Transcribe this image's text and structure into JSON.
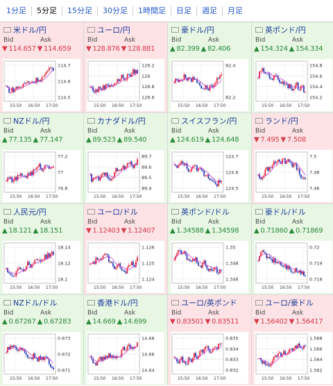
{
  "tabs": [
    "1分足",
    "5分足",
    "15分足",
    "30分足",
    "1時間足",
    "日足",
    "週足",
    "月足"
  ],
  "active_tab": 1,
  "bid_label": "Bid",
  "ask_label": "Ask",
  "time_labels": [
    "15:50",
    "16:50",
    "17:50"
  ],
  "colors": {
    "up_bg": "#e8f7e4",
    "down_bg": "#fde3e5",
    "up_text": "#2a8a3a",
    "down_text": "#d83a4a",
    "name_text": "#1a3a99"
  },
  "pairs": [
    {
      "name": "米ドル/円",
      "flag": "us-flag-icon",
      "dir": "down",
      "bid": "114.657",
      "ask": "114.659",
      "ticks": [
        "114.7",
        "114.6",
        "114.5"
      ],
      "trend": "up"
    },
    {
      "name": "ユーロ/円",
      "flag": "eu-flag-icon",
      "dir": "down",
      "bid": "128.876",
      "ask": "128.881",
      "ticks": [
        "129.2",
        "129",
        "128.8",
        "128.6"
      ],
      "trend": "up"
    },
    {
      "name": "豪ドル/円",
      "flag": "au-flag-icon",
      "dir": "up",
      "bid": "82.399",
      "ask": "82.406",
      "ticks": [
        "82.4",
        "82.2"
      ],
      "trend": "flat"
    },
    {
      "name": "英ポンド/円",
      "flag": "uk-flag-icon",
      "dir": "up",
      "bid": "154.324",
      "ask": "154.334",
      "ticks": [
        "154.8",
        "154.6",
        "154.4",
        "154.2"
      ],
      "trend": "down"
    },
    {
      "name": "NZドル/円",
      "flag": "nz-flag-icon",
      "dir": "up",
      "bid": "77.135",
      "ask": "77.147",
      "ticks": [
        "77.2",
        "77",
        "76.8"
      ],
      "trend": "up"
    },
    {
      "name": "カナダドル/円",
      "flag": "ca-flag-icon",
      "dir": "up",
      "bid": "89.523",
      "ask": "89.540",
      "ticks": [
        "89.7",
        "89.6",
        "89.5",
        "89.4"
      ],
      "trend": "up"
    },
    {
      "name": "スイスフラン/円",
      "flag": "ch-flag-icon",
      "dir": "up",
      "bid": "124.619",
      "ask": "124.648",
      "ticks": [
        "124.7",
        "124.6",
        "124.5"
      ],
      "trend": "down"
    },
    {
      "name": "ランド/円",
      "flag": "za-flag-icon",
      "dir": "down",
      "bid": "7.495",
      "ask": "7.508",
      "ticks": [
        "7.5",
        "7.48",
        "7.46"
      ],
      "trend": "peak"
    },
    {
      "name": "人民元/円",
      "flag": "cn-flag-icon",
      "dir": "up",
      "bid": "18.121",
      "ask": "18.151",
      "ticks": [
        "18.14",
        "18.12",
        "18.1"
      ],
      "trend": "up"
    },
    {
      "name": "ユーロ/ドル",
      "flag": "eu-flag-icon",
      "dir": "down",
      "bid": "1.12403",
      "ask": "1.12407",
      "ticks": [
        "1.126",
        "1.125",
        "1.124"
      ],
      "trend": "flat"
    },
    {
      "name": "英ポンド/ドル",
      "flag": "uk-flag-icon",
      "dir": "up",
      "bid": "1.34588",
      "ask": "1.34598",
      "ticks": [
        "1.35",
        "1.348",
        "1.346"
      ],
      "trend": "down"
    },
    {
      "name": "豪ドル/ドル",
      "flag": "au-flag-icon",
      "dir": "up",
      "bid": "0.71860",
      "ask": "0.71869",
      "ticks": [
        "0.72",
        "0.719",
        "0.718"
      ],
      "trend": "down"
    },
    {
      "name": "NZドル/ドル",
      "flag": "nz-flag-icon",
      "dir": "up",
      "bid": "0.67267",
      "ask": "0.67283",
      "ticks": [
        "0.673",
        "0.672",
        "0.671"
      ],
      "trend": "down"
    },
    {
      "name": "香港ドル/円",
      "flag": "hk-flag-icon",
      "dir": "up",
      "bid": "14.669",
      "ask": "14.699",
      "ticks": [
        "14.68",
        "14.66",
        "14.64"
      ],
      "trend": "up"
    },
    {
      "name": "ユーロ/英ポンド",
      "flag": "eu-flag-icon",
      "dir": "down",
      "bid": "0.83501",
      "ask": "0.83511",
      "ticks": [
        "0.835",
        "0.834",
        "0.833",
        "0.832"
      ],
      "trend": "up"
    },
    {
      "name": "ユーロ/豪ドル",
      "flag": "eu-flag-icon",
      "dir": "down",
      "bid": "1.56402",
      "ask": "1.56417",
      "ticks": [
        "1.568",
        "1.566",
        "1.564",
        "1.562"
      ],
      "trend": "up"
    }
  ]
}
